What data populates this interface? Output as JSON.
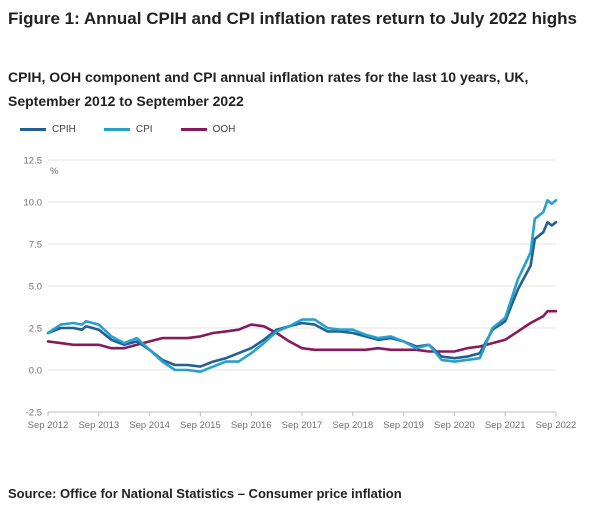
{
  "title": "Figure 1: Annual CPIH and CPI inflation rates return to July 2022 highs",
  "subtitle": "CPIH, OOH component and CPI annual inflation rates for the last 10 years, UK, September 2012 to September 2022",
  "source": "Source: Office for National Statistics – Consumer price inflation",
  "chart_data": {
    "type": "line",
    "title": "",
    "ylabel": "%",
    "xlabel": "",
    "ylim": [
      -2.5,
      12.5
    ],
    "y_ticks": [
      -2.5,
      0.0,
      2.5,
      5.0,
      7.5,
      10.0,
      12.5
    ],
    "y_tick_labels": [
      "-2.5",
      "0.0",
      "2.5",
      "5.0",
      "7.5",
      "10.0",
      "12.5"
    ],
    "x_range": [
      "2012-09",
      "2022-09"
    ],
    "x_tick_labels": [
      "Sep 2012",
      "Sep 2013",
      "Sep 2014",
      "Sep 2015",
      "Sep 2016",
      "Sep 2017",
      "Sep 2018",
      "Sep 2019",
      "Sep 2020",
      "Sep 2021",
      "Sep 2022"
    ],
    "grid": "horizontal",
    "legend_position": "top-left",
    "series": [
      {
        "name": "CPIH",
        "color": "#206095",
        "points": [
          [
            "2012-09",
            2.2
          ],
          [
            "2012-12",
            2.5
          ],
          [
            "2013-03",
            2.5
          ],
          [
            "2013-05",
            2.4
          ],
          [
            "2013-06",
            2.6
          ],
          [
            "2013-09",
            2.4
          ],
          [
            "2013-12",
            1.8
          ],
          [
            "2014-03",
            1.5
          ],
          [
            "2014-06",
            1.7
          ],
          [
            "2014-09",
            1.2
          ],
          [
            "2014-12",
            0.6
          ],
          [
            "2015-03",
            0.3
          ],
          [
            "2015-06",
            0.3
          ],
          [
            "2015-09",
            0.2
          ],
          [
            "2015-12",
            0.5
          ],
          [
            "2016-03",
            0.7
          ],
          [
            "2016-06",
            1.0
          ],
          [
            "2016-09",
            1.3
          ],
          [
            "2016-12",
            1.8
          ],
          [
            "2017-03",
            2.4
          ],
          [
            "2017-06",
            2.6
          ],
          [
            "2017-09",
            2.8
          ],
          [
            "2017-12",
            2.7
          ],
          [
            "2018-03",
            2.3
          ],
          [
            "2018-06",
            2.3
          ],
          [
            "2018-09",
            2.2
          ],
          [
            "2018-12",
            2.0
          ],
          [
            "2019-03",
            1.8
          ],
          [
            "2019-06",
            1.9
          ],
          [
            "2019-09",
            1.7
          ],
          [
            "2019-12",
            1.4
          ],
          [
            "2020-03",
            1.5
          ],
          [
            "2020-06",
            0.8
          ],
          [
            "2020-09",
            0.7
          ],
          [
            "2020-12",
            0.8
          ],
          [
            "2021-03",
            1.0
          ],
          [
            "2021-06",
            2.4
          ],
          [
            "2021-09",
            2.9
          ],
          [
            "2021-12",
            4.8
          ],
          [
            "2022-03",
            6.2
          ],
          [
            "2022-04",
            7.8
          ],
          [
            "2022-06",
            8.2
          ],
          [
            "2022-07",
            8.8
          ],
          [
            "2022-08",
            8.6
          ],
          [
            "2022-09",
            8.8
          ]
        ]
      },
      {
        "name": "CPI",
        "color": "#27a0cc",
        "points": [
          [
            "2012-09",
            2.2
          ],
          [
            "2012-12",
            2.7
          ],
          [
            "2013-03",
            2.8
          ],
          [
            "2013-05",
            2.7
          ],
          [
            "2013-06",
            2.9
          ],
          [
            "2013-09",
            2.7
          ],
          [
            "2013-12",
            2.0
          ],
          [
            "2014-03",
            1.6
          ],
          [
            "2014-06",
            1.9
          ],
          [
            "2014-09",
            1.2
          ],
          [
            "2014-12",
            0.5
          ],
          [
            "2015-03",
            0.0
          ],
          [
            "2015-06",
            0.0
          ],
          [
            "2015-09",
            -0.1
          ],
          [
            "2015-12",
            0.2
          ],
          [
            "2016-03",
            0.5
          ],
          [
            "2016-06",
            0.5
          ],
          [
            "2016-09",
            1.0
          ],
          [
            "2016-12",
            1.6
          ],
          [
            "2017-03",
            2.3
          ],
          [
            "2017-06",
            2.6
          ],
          [
            "2017-09",
            3.0
          ],
          [
            "2017-12",
            3.0
          ],
          [
            "2018-03",
            2.5
          ],
          [
            "2018-06",
            2.4
          ],
          [
            "2018-09",
            2.4
          ],
          [
            "2018-12",
            2.1
          ],
          [
            "2019-03",
            1.9
          ],
          [
            "2019-06",
            2.0
          ],
          [
            "2019-09",
            1.7
          ],
          [
            "2019-12",
            1.3
          ],
          [
            "2020-03",
            1.5
          ],
          [
            "2020-06",
            0.6
          ],
          [
            "2020-09",
            0.5
          ],
          [
            "2020-12",
            0.6
          ],
          [
            "2021-03",
            0.7
          ],
          [
            "2021-06",
            2.5
          ],
          [
            "2021-09",
            3.1
          ],
          [
            "2021-12",
            5.4
          ],
          [
            "2022-03",
            7.0
          ],
          [
            "2022-04",
            9.0
          ],
          [
            "2022-06",
            9.4
          ],
          [
            "2022-07",
            10.1
          ],
          [
            "2022-08",
            9.9
          ],
          [
            "2022-09",
            10.1
          ]
        ]
      },
      {
        "name": "OOH",
        "color": "#871a5b",
        "points": [
          [
            "2012-09",
            1.7
          ],
          [
            "2012-12",
            1.6
          ],
          [
            "2013-03",
            1.5
          ],
          [
            "2013-06",
            1.5
          ],
          [
            "2013-09",
            1.5
          ],
          [
            "2013-12",
            1.3
          ],
          [
            "2014-03",
            1.3
          ],
          [
            "2014-06",
            1.5
          ],
          [
            "2014-09",
            1.7
          ],
          [
            "2014-12",
            1.9
          ],
          [
            "2015-03",
            1.9
          ],
          [
            "2015-06",
            1.9
          ],
          [
            "2015-09",
            2.0
          ],
          [
            "2015-12",
            2.2
          ],
          [
            "2016-03",
            2.3
          ],
          [
            "2016-06",
            2.4
          ],
          [
            "2016-09",
            2.7
          ],
          [
            "2016-12",
            2.6
          ],
          [
            "2017-03",
            2.2
          ],
          [
            "2017-06",
            1.7
          ],
          [
            "2017-09",
            1.3
          ],
          [
            "2017-12",
            1.2
          ],
          [
            "2018-03",
            1.2
          ],
          [
            "2018-06",
            1.2
          ],
          [
            "2018-09",
            1.2
          ],
          [
            "2018-12",
            1.2
          ],
          [
            "2019-03",
            1.3
          ],
          [
            "2019-06",
            1.2
          ],
          [
            "2019-09",
            1.2
          ],
          [
            "2019-12",
            1.2
          ],
          [
            "2020-03",
            1.1
          ],
          [
            "2020-06",
            1.1
          ],
          [
            "2020-09",
            1.1
          ],
          [
            "2020-12",
            1.3
          ],
          [
            "2021-03",
            1.4
          ],
          [
            "2021-06",
            1.6
          ],
          [
            "2021-09",
            1.8
          ],
          [
            "2021-12",
            2.3
          ],
          [
            "2022-03",
            2.8
          ],
          [
            "2022-06",
            3.2
          ],
          [
            "2022-07",
            3.5
          ],
          [
            "2022-09",
            3.5
          ]
        ]
      }
    ]
  }
}
